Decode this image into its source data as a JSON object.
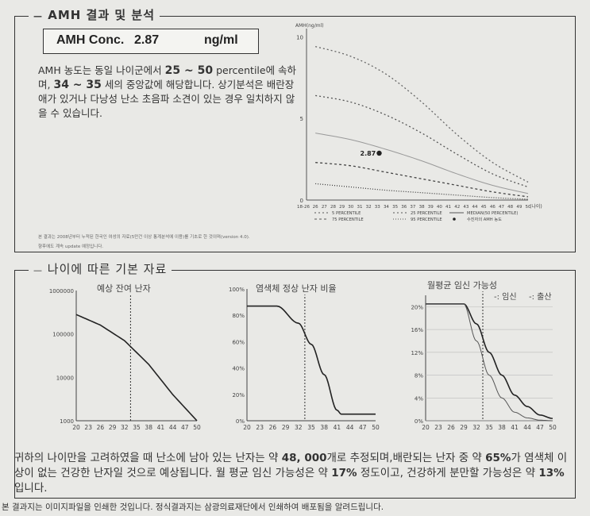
{
  "section1": {
    "title": "AMH 결과 및 분석",
    "amh_label": "AMH Conc.",
    "amh_value": "2.87",
    "amh_unit": "ng/ml",
    "para": [
      {
        "t": "AMH 농도는 동일 나이군에서 ",
        "b": false
      },
      {
        "t": "25 ~ 50",
        "b": true
      },
      {
        "t": " percentile에 속하며, ",
        "b": false
      },
      {
        "t": "34 ~ 35",
        "b": true
      },
      {
        "t": " 세의 중앙값에 해당합니다. 상기분석은 배란장애가 있거나 다낭성 난소 초음파 소견이 있는 경우 일치하지 않을 수 있습니다.",
        "b": false
      }
    ],
    "footnote1": "본 결과는 2008년부터 누적된 한국인 여성의 자료(5만건 이상 통계분석에 이용)를 기초로 한 것이며(version 4.0).",
    "footnote2": "향후에도 계속 update 예정입니다."
  },
  "chart_main": {
    "type": "line",
    "ylabel": "AMH(ng/ml)",
    "x_axis_label": "(나이)",
    "x": [
      "18-26",
      "26",
      "27",
      "28",
      "29",
      "30",
      "31",
      "32",
      "33",
      "34",
      "35",
      "36",
      "37",
      "38",
      "39",
      "40",
      "41",
      "42",
      "43",
      "44",
      "45",
      "46",
      "47",
      "48",
      "49",
      "50"
    ],
    "y_ticks": [
      "10",
      "5",
      "0"
    ],
    "ylim": [
      0,
      10.5
    ],
    "point_label": "2.87",
    "legend": [
      "5 PERCENTILE",
      "25 PERCENTILE",
      "MEDIAN(50 PERCENTILE)",
      "75 PERCENTILE",
      "95 PERCENTILE",
      "수진자의 AMH 농도"
    ]
  },
  "section2": {
    "title": "나이에 따른 기본 자료",
    "chart1_title": "예상 잔여 난자",
    "chart2_title": "염색체 정상 난자 비율",
    "chart3_title": "월평균 임신 가능성",
    "chart3_legend1": "-: 임신",
    "chart3_legend2": "-: 출산",
    "summary_1": "귀하의 나이만을 고려하였을 때 난소에 남아 있는 난자는 약 ",
    "summary_n1": "48, 000",
    "summary_2": "개로 추정되며,배란되는 난자 중 약 ",
    "summary_n2": "65%",
    "summary_3": "가 염색체 이상이 없는 건강한 난자일 것으로 예상됩니다. 월 평균 임신 가능성은 약 ",
    "summary_n3": "17%",
    "summary_4": " 정도이고, 건강하게 분만할 가능성은 약 ",
    "summary_n4": "13%",
    "summary_5": " 입니다.",
    "footer": "본 결과지는 이미지파일을 인쇄한 것입니다. 정식결과지는 삼광의료재단에서 인쇄하여 배포됨을 알려드립니다."
  },
  "chart_data": [
    {
      "type": "line",
      "title": "",
      "ylabel": "AMH(ng/ml)",
      "x": [
        26,
        30,
        34,
        38,
        42,
        46,
        50
      ],
      "ylim": [
        0,
        10.5
      ],
      "series": [
        {
          "name": "95 PERCENTILE",
          "values": [
            9.4,
            8.8,
            7.7,
            6.0,
            4.0,
            2.3,
            1.1
          ]
        },
        {
          "name": "75 PERCENTILE",
          "values": [
            6.4,
            6.0,
            5.2,
            4.1,
            2.8,
            1.6,
            0.8
          ]
        },
        {
          "name": "MEDIAN(50 PERCENTILE)",
          "values": [
            4.1,
            3.7,
            3.1,
            2.4,
            1.6,
            0.9,
            0.4
          ]
        },
        {
          "name": "25 PERCENTILE",
          "values": [
            2.3,
            2.1,
            1.7,
            1.3,
            0.9,
            0.5,
            0.2
          ]
        },
        {
          "name": "5 PERCENTILE",
          "values": [
            1.0,
            0.8,
            0.6,
            0.45,
            0.3,
            0.15,
            0.05
          ]
        }
      ],
      "patient_point": {
        "x": 33.2,
        "y": 2.87
      }
    },
    {
      "type": "line",
      "title": "예상 잔여 난자",
      "x_ticks": [
        "20",
        "23",
        "26",
        "29",
        "32",
        "35",
        "38",
        "41",
        "44",
        "47",
        "50"
      ],
      "y_ticks": [
        "1000000",
        "100000",
        "10000",
        "1000"
      ],
      "log_scale": true,
      "ylim": [
        1000,
        1000000
      ],
      "series": [
        {
          "name": "",
          "x": [
            20,
            26,
            32,
            38,
            44,
            50
          ],
          "values": [
            280000,
            160000,
            70000,
            20000,
            4000,
            1000
          ]
        }
      ],
      "marker_x": 33.5
    },
    {
      "type": "line",
      "title": "염색체 정상 난자 비율",
      "x_ticks": [
        "20",
        "23",
        "26",
        "29",
        "32",
        "35",
        "38",
        "41",
        "44",
        "47",
        "50"
      ],
      "y_ticks": [
        "100%",
        "80%",
        "60%",
        "40%",
        "20%",
        "0%"
      ],
      "ylim": [
        0,
        100
      ],
      "series": [
        {
          "name": "",
          "x": [
            20,
            27,
            32,
            35,
            38,
            41,
            42,
            50
          ],
          "values": [
            87,
            87,
            74,
            58,
            35,
            8,
            5,
            5
          ]
        }
      ],
      "marker_x": 33.5
    },
    {
      "type": "line",
      "title": "월평균 임신 가능성",
      "x_ticks": [
        "20",
        "23",
        "26",
        "29",
        "32",
        "35",
        "38",
        "41",
        "44",
        "47",
        "50"
      ],
      "y_ticks": [
        "20%",
        "16%",
        "12%",
        "8%",
        "4%",
        "0%"
      ],
      "ylim": [
        0,
        22
      ],
      "series": [
        {
          "name": "-: 임신",
          "x": [
            20,
            29,
            32,
            35,
            38,
            41,
            44,
            47,
            50
          ],
          "values": [
            20.5,
            20.5,
            17,
            12,
            8,
            4.5,
            2.5,
            1.0,
            0.4
          ]
        },
        {
          "name": "-: 출산",
          "x": [
            20,
            29,
            32,
            35,
            38,
            41,
            44,
            47,
            50
          ],
          "values": [
            20.5,
            20.5,
            14,
            8,
            4,
            1.5,
            0.5,
            0.1,
            0.0
          ]
        }
      ],
      "marker_x": 33.5
    }
  ]
}
